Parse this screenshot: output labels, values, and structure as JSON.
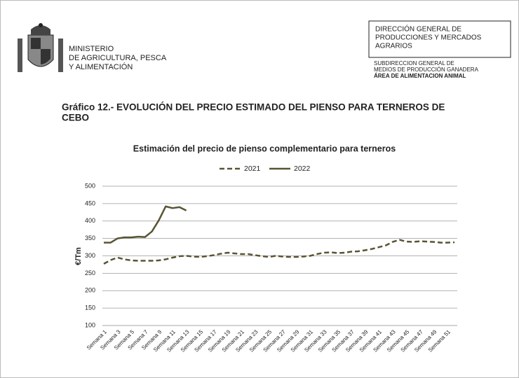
{
  "header": {
    "ministry": [
      "MINISTERIO",
      "DE AGRICULTURA, PESCA",
      "Y ALIMENTACIÓN"
    ],
    "directorate": [
      "DIRECCIÓN GENERAL DE",
      "PRODUCCIONES Y MERCADOS",
      "AGRARIOS"
    ],
    "subdirectorate": [
      "SUBDIRECCION GENERAL DE",
      "MEDIOS DE PRODUCCIÓN GANADERA",
      "ÁREA DE ALIMENTACION ANIMAL"
    ]
  },
  "document_title": [
    "Gráfico 12.- EVOLUCIÓN DEL PRECIO ESTIMADO DEL PIENSO PARA TERNEROS DE",
    "CEBO"
  ],
  "chart_data": {
    "type": "line",
    "title": "Estimación del precio de pienso complementario para terneros",
    "y_label": "€/Tm",
    "categories": [
      "Semana 1",
      null,
      "Semana 3",
      null,
      "Semana 5",
      null,
      "Semana 7",
      null,
      "Semana 9",
      null,
      "Semana 11",
      null,
      "Semana 13",
      null,
      "Semana 15",
      null,
      "Semana 17",
      null,
      "Semana 19",
      null,
      "Semana 21",
      null,
      "Semana 23",
      null,
      "Semana 25",
      null,
      "Semana 27",
      null,
      "Semana 29",
      null,
      "Semana 31",
      null,
      "Semana 33",
      null,
      "Semana 35",
      null,
      "Semana 37",
      null,
      "Semana 39",
      null,
      "Semana 41",
      null,
      "Semana 43",
      null,
      "Semana 45",
      null,
      "Semana 47",
      null,
      "Semana 49",
      null,
      "Semana 51",
      null
    ],
    "series": [
      {
        "name": "2021",
        "color": "#595433",
        "dashed": true,
        "values": [
          277,
          288,
          295,
          290,
          287,
          286,
          286,
          286,
          287,
          290,
          295,
          299,
          300,
          298,
          297,
          299,
          302,
          306,
          309,
          307,
          305,
          305,
          302,
          299,
          297,
          300,
          298,
          297,
          297,
          298,
          300,
          305,
          309,
          310,
          308,
          309,
          312,
          313,
          316,
          320,
          325,
          330,
          340,
          346,
          341,
          340,
          342,
          341,
          340,
          338,
          338,
          339
        ]
      },
      {
        "name": "2022",
        "color": "#595433",
        "dashed": false,
        "values": [
          338,
          338,
          350,
          353,
          353,
          355,
          354,
          370,
          402,
          442,
          437,
          440,
          430,
          null,
          null,
          null,
          null,
          null,
          null,
          null,
          null,
          null,
          null,
          null,
          null,
          null,
          null,
          null,
          null,
          null,
          null,
          null,
          null,
          null,
          null,
          null,
          null,
          null,
          null,
          null,
          null,
          null,
          null,
          null,
          null,
          null,
          null,
          null,
          null,
          null,
          null,
          null
        ]
      }
    ],
    "ylim": [
      100,
      500
    ],
    "yticks": [
      100,
      150,
      200,
      250,
      300,
      350,
      400,
      450,
      500
    ],
    "grid": true,
    "legend": "top"
  }
}
